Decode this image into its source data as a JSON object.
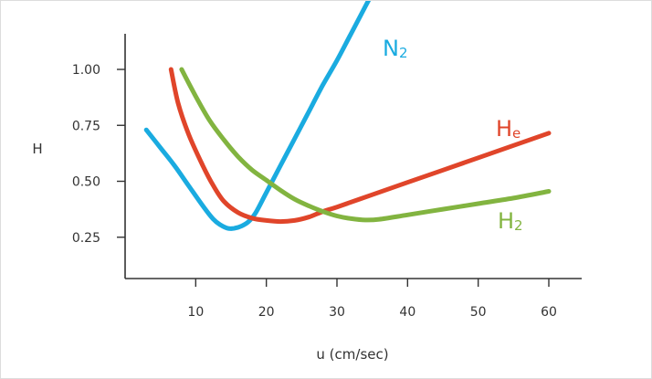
{
  "chart_data": {
    "type": "line",
    "xlabel": "u (cm/sec)",
    "ylabel": "H",
    "xlim": [
      0,
      65
    ],
    "ylim": [
      0,
      1.25
    ],
    "xticks": [
      10,
      20,
      30,
      40,
      50,
      60
    ],
    "yticks": [
      0.25,
      0.5,
      0.75,
      1.0
    ],
    "xtick_labels": [
      "10",
      "20",
      "30",
      "40",
      "50",
      "60"
    ],
    "ytick_labels": [
      "0.25",
      "0.50",
      "0.75",
      "1.00"
    ],
    "grid": false,
    "series": [
      {
        "name": "N",
        "subscript": "2",
        "color": "#1aabe0",
        "x": [
          3,
          5,
          7,
          9,
          11,
          12.5,
          13.5,
          14.5,
          15.5,
          16.5,
          17.5,
          18.5,
          20,
          22,
          24,
          26,
          28,
          30,
          32,
          34,
          36
        ],
        "y": [
          0.73,
          0.65,
          0.57,
          0.48,
          0.39,
          0.33,
          0.305,
          0.29,
          0.29,
          0.3,
          0.32,
          0.36,
          0.45,
          0.57,
          0.69,
          0.81,
          0.93,
          1.04,
          1.16,
          1.28,
          1.4
        ]
      },
      {
        "name": "H",
        "subscript": "e",
        "color": "#e0452a",
        "x": [
          6.5,
          7.5,
          9,
          11,
          12.5,
          14,
          16,
          18,
          20,
          22,
          24,
          26,
          28,
          30,
          35,
          40,
          45,
          50,
          55,
          60
        ],
        "y": [
          1.0,
          0.85,
          0.71,
          0.57,
          0.48,
          0.41,
          0.36,
          0.335,
          0.325,
          0.32,
          0.325,
          0.34,
          0.365,
          0.385,
          0.44,
          0.495,
          0.55,
          0.605,
          0.66,
          0.715
        ]
      },
      {
        "name": "H",
        "subscript": "2",
        "color": "#82b440",
        "x": [
          8,
          10,
          12,
          14,
          16,
          18,
          20,
          22,
          24,
          26,
          28,
          30,
          32,
          34,
          36,
          40,
          45,
          50,
          55,
          60
        ],
        "y": [
          1.0,
          0.88,
          0.77,
          0.685,
          0.61,
          0.55,
          0.505,
          0.46,
          0.42,
          0.39,
          0.365,
          0.345,
          0.333,
          0.327,
          0.33,
          0.35,
          0.375,
          0.4,
          0.425,
          0.455
        ]
      }
    ]
  }
}
